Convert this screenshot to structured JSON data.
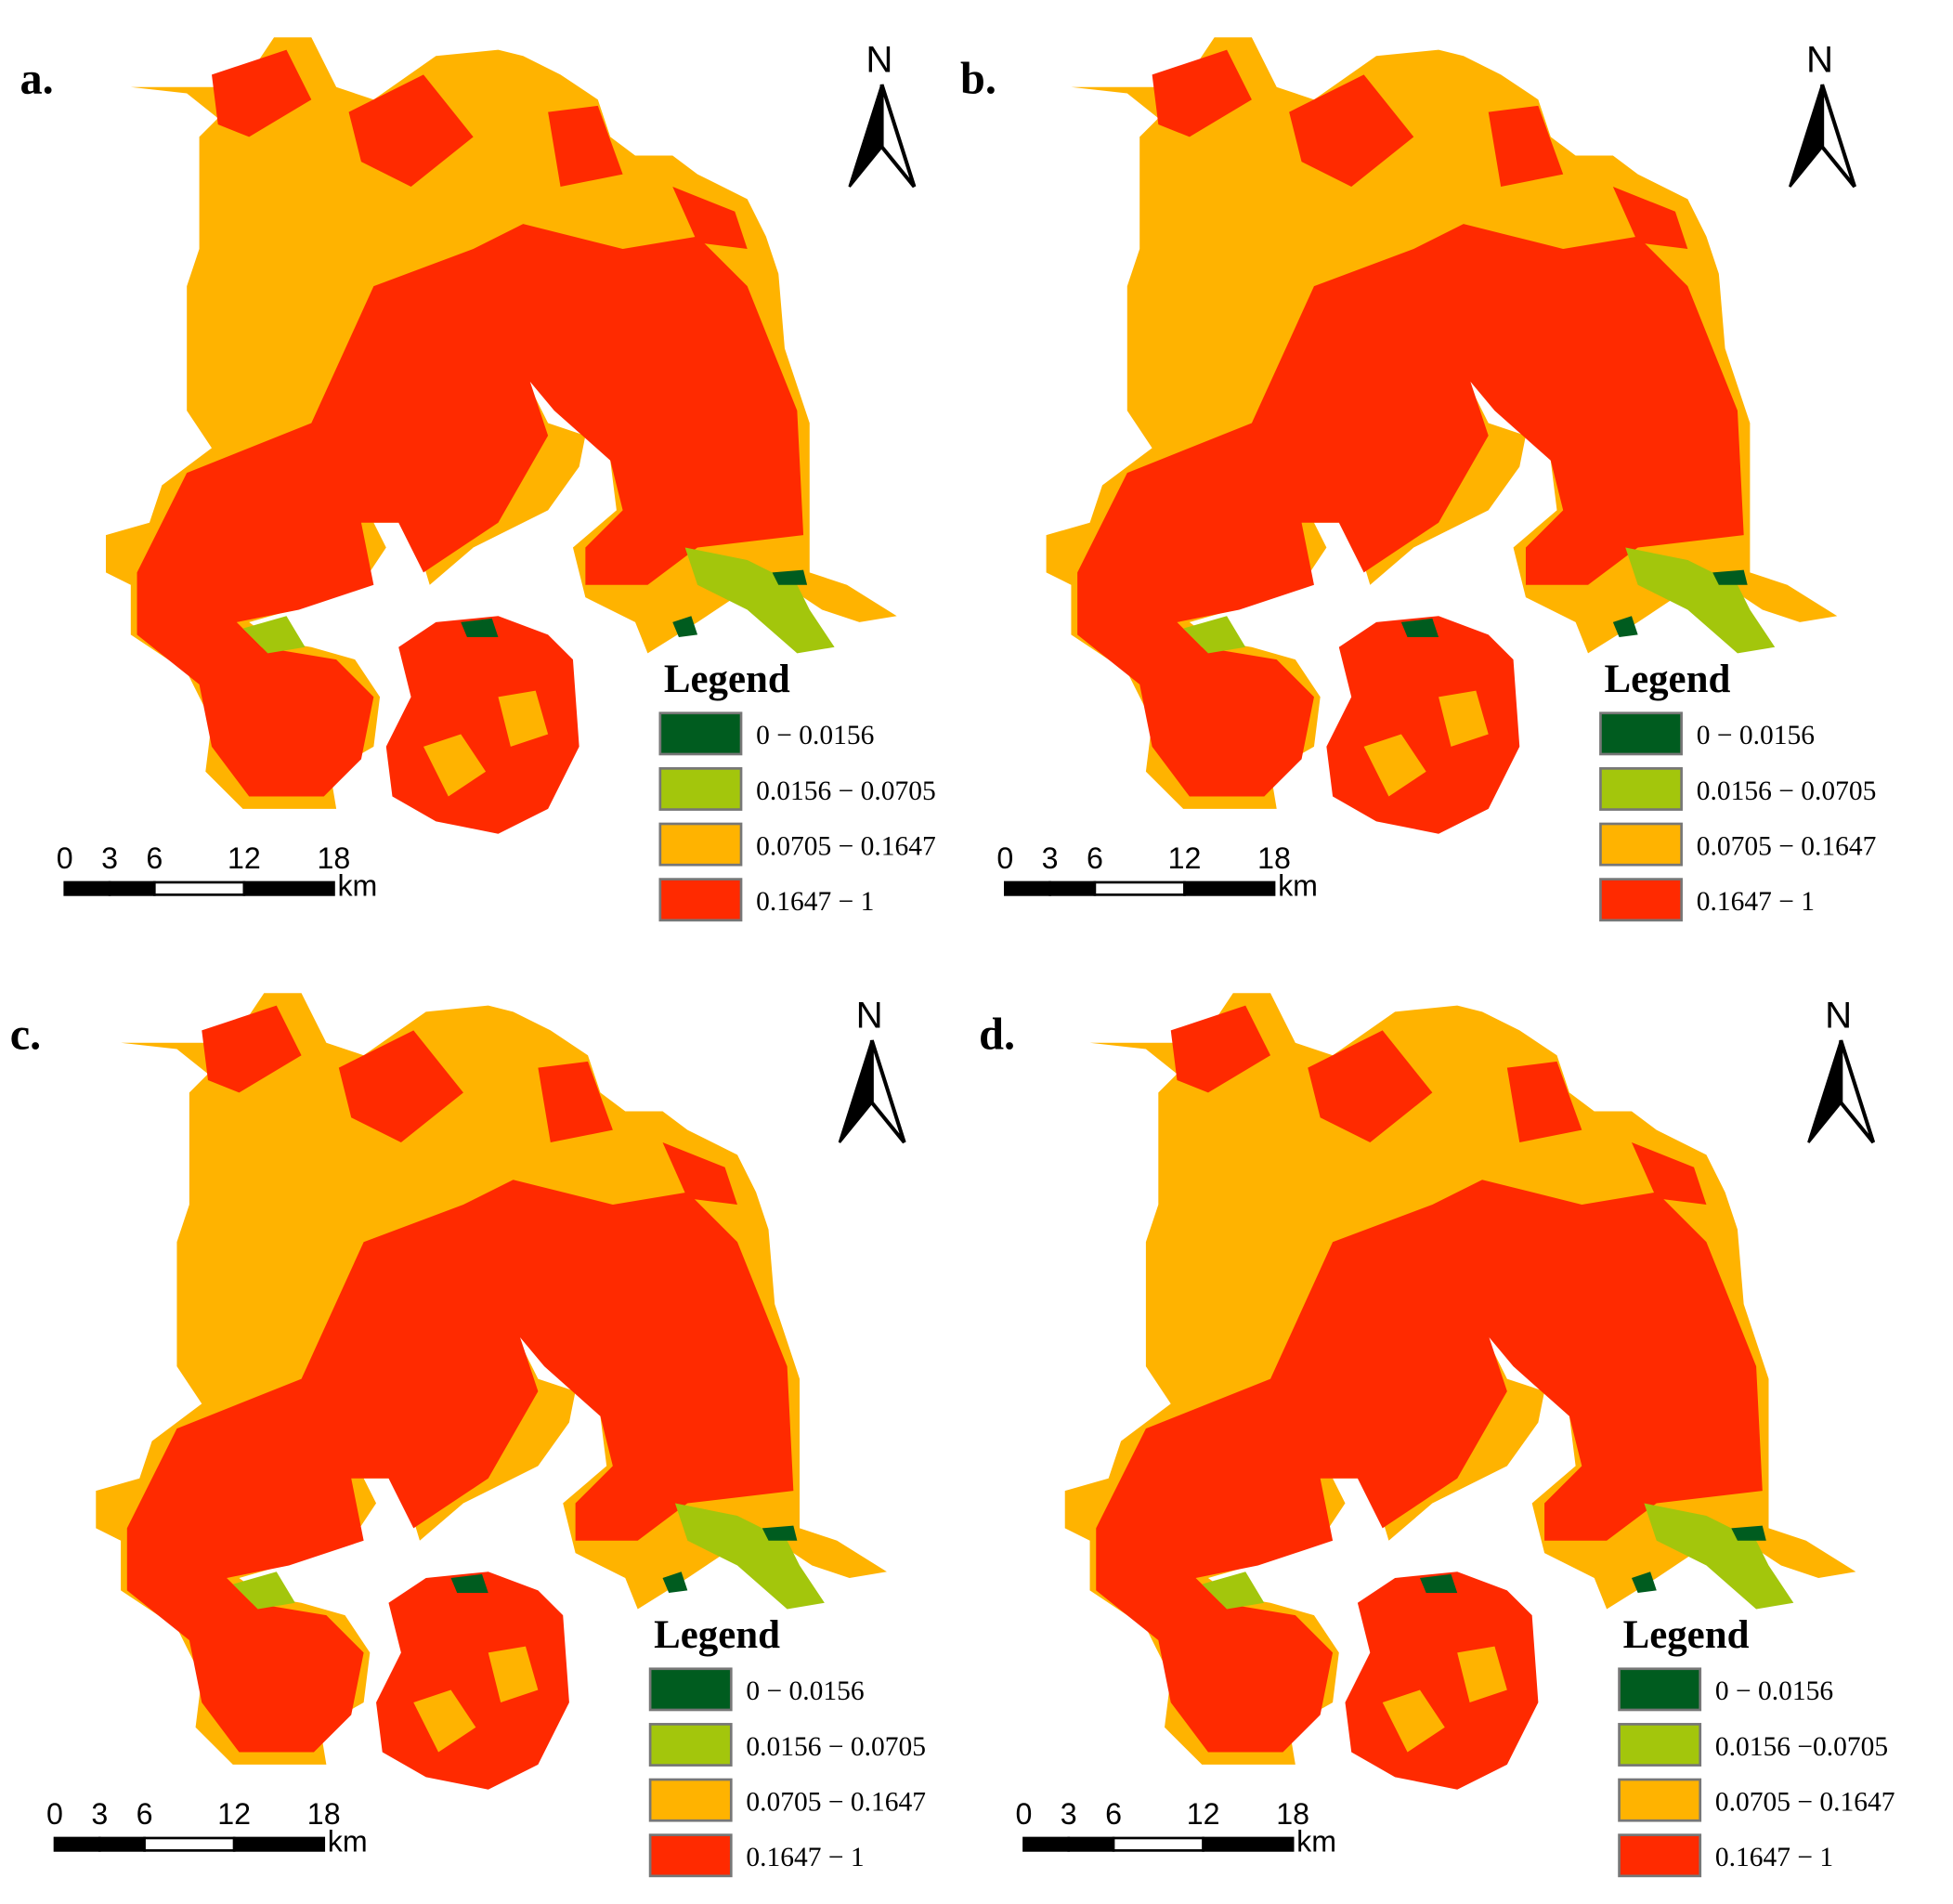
{
  "panels": [
    {
      "label": "a.",
      "north": "N",
      "legend": {
        "title": "Legend",
        "items": [
          {
            "label": "0 − 0.0156",
            "color": "#005c1f"
          },
          {
            "label": "0.0156 − 0.0705",
            "color": "#a3c60c"
          },
          {
            "label": "0.0705 − 0.1647",
            "color": "#ffb300"
          },
          {
            "label": "0.1647 − 1",
            "color": "#ff2a00"
          }
        ]
      },
      "scale": {
        "ticks": [
          0,
          3,
          6,
          12,
          18
        ],
        "unit": "km"
      }
    },
    {
      "label": "b.",
      "north": "N",
      "legend": {
        "title": "Legend",
        "items": [
          {
            "label": "0 − 0.0156",
            "color": "#005c1f"
          },
          {
            "label": "0.0156 − 0.0705",
            "color": "#a3c60c"
          },
          {
            "label": "0.0705 − 0.1647",
            "color": "#ffb300"
          },
          {
            "label": "0.1647 − 1",
            "color": "#ff2a00"
          }
        ]
      },
      "scale": {
        "ticks": [
          0,
          3,
          6,
          12,
          18
        ],
        "unit": "km"
      }
    },
    {
      "label": "c.",
      "north": "N",
      "legend": {
        "title": "Legend",
        "items": [
          {
            "label": "0 − 0.0156",
            "color": "#005c1f"
          },
          {
            "label": "0.0156 − 0.0705",
            "color": "#a3c60c"
          },
          {
            "label": "0.0705 − 0.1647",
            "color": "#ffb300"
          },
          {
            "label": "0.1647 − 1",
            "color": "#ff2a00"
          }
        ]
      },
      "scale": {
        "ticks": [
          0,
          3,
          6,
          12,
          18
        ],
        "unit": "km"
      }
    },
    {
      "label": "d.",
      "north": "N",
      "legend": {
        "title": "Legend",
        "items": [
          {
            "label": "0 − 0.0156",
            "color": "#005c1f"
          },
          {
            "label": "0.0156 −0.0705",
            "color": "#a3c60c"
          },
          {
            "label": "0.0705 − 0.1647",
            "color": "#ffb300"
          },
          {
            "label": "0.1647 − 1",
            "color": "#ff2a00"
          }
        ]
      },
      "scale": {
        "ticks": [
          0,
          3,
          6,
          12,
          18
        ],
        "unit": "km"
      }
    }
  ]
}
